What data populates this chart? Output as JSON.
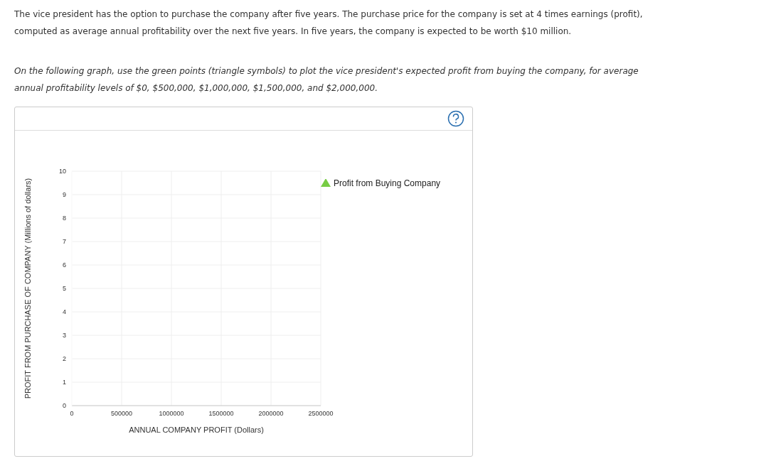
{
  "chart_data": {
    "type": "scatter",
    "annotations": [
      "The vice president has the option to purchase the company after five years. The purchase price for the company is set at 4 times earnings (profit), computed as average annual profitability over the next five years. In five years, the company is expected to be worth $10 million.",
      "On the following graph, use the green points (triangle symbols) to plot the vice president's expected profit from buying the company, for average annual profitability levels of $0, $500,000, $1,000,000, $1,500,000, and $2,000,000."
    ],
    "xlabel": "ANNUAL COMPANY PROFIT (Dollars)",
    "ylabel": "PROFIT FROM PURCHASE OF COMPANY (Millions of dollars)",
    "series": [
      {
        "name": "Profit from Buying Company",
        "color": "#77cc44",
        "values": [
          null,
          null,
          null,
          null,
          null,
          null
        ]
      }
    ],
    "categories": [
      "0",
      "500000",
      "1000000",
      "1500000",
      "2000000",
      "2500000"
    ],
    "ylim": [
      0,
      10
    ],
    "yticks": [
      0,
      1,
      2,
      3,
      4,
      5,
      6,
      7,
      8,
      9,
      10
    ],
    "grid": true,
    "legend": "right",
    "marker": "triangle"
  }
}
